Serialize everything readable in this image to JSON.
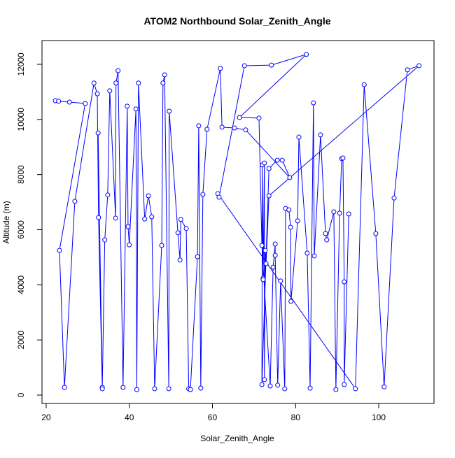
{
  "chart_data": {
    "type": "line",
    "title": "ATOM2 Northbound Solar_Zenith_Angle",
    "x_label": "Solar_Zenith_Angle",
    "y_label": "Altitude (m)",
    "xlim": [
      19,
      113.3
    ],
    "ylim": [
      -304,
      12862
    ],
    "xticks": [
      20,
      40,
      60,
      80,
      100
    ],
    "yticks": [
      0,
      2000,
      4000,
      6000,
      8000,
      10000,
      12000
    ],
    "x": [
      22.2,
      23.0,
      25.6,
      29.4,
      23.2,
      24.4,
      26.9,
      31.5,
      32.3,
      32.6,
      33.5,
      32.5,
      33.5,
      34.1,
      34.8,
      35.3,
      36.7,
      36.8,
      37.3,
      38.5,
      39.5,
      39.7,
      40.0,
      41.6,
      41.8,
      42.2,
      43.7,
      44.6,
      45.4,
      46.1,
      47.8,
      48.1,
      48.5,
      49.5,
      49.6,
      51.7,
      52.2,
      52.4,
      53.7,
      54.3,
      54.7,
      56.4,
      56.7,
      57.2,
      57.7,
      58.7,
      61.9,
      62.3,
      65.3,
      68.0,
      78.6,
      76.8,
      75.6,
      73.6,
      71.9,
      72.0,
      72.2,
      72.2,
      72.5,
      72.5,
      72.7,
      72.9,
      73.6,
      109.7,
      106.9,
      103.7,
      101.3,
      99.3,
      96.5,
      94.4,
      61.3,
      61.6,
      67.7,
      74.2,
      82.6,
      66.5,
      71.2,
      71.9,
      73.9,
      74.6,
      75.1,
      75.1,
      75.7,
      76.4,
      77.4,
      77.6,
      78.4,
      78.8,
      78.9,
      80.5,
      80.8,
      82.8,
      83.5,
      84.3,
      84.5,
      86.0,
      87.2,
      87.5,
      89.2,
      89.7,
      90.6,
      91.1,
      91.4,
      91.7,
      91.7,
      92.8
    ],
    "series": [
      {
        "color": "#0000ff",
        "values": [
          10680,
          10660,
          10630,
          10580,
          5250,
          280,
          7030,
          11320,
          10930,
          6440,
          280,
          9510,
          230,
          5630,
          7260,
          11040,
          6420,
          11320,
          11770,
          280,
          10480,
          6110,
          5450,
          10380,
          200,
          11320,
          6390,
          7230,
          6470,
          230,
          5430,
          11320,
          11620,
          230,
          10300,
          5890,
          4900,
          6370,
          6040,
          230,
          200,
          5020,
          9770,
          250,
          7280,
          9640,
          11850,
          9720,
          9690,
          9620,
          7890,
          8520,
          8520,
          8220,
          380,
          8350,
          4240,
          4190,
          8420,
          560,
          5250,
          4770,
          7230,
          11950,
          11800,
          7150,
          300,
          5860,
          11260,
          230,
          7310,
          7180,
          11950,
          11970,
          12360,
          10070,
          10050,
          5430,
          330,
          4640,
          5480,
          5070,
          360,
          4140,
          230,
          6770,
          6720,
          6090,
          3400,
          6320,
          9360,
          5150,
          250,
          10600,
          5050,
          9440,
          5860,
          5630,
          6650,
          200,
          6600,
          8580,
          8600,
          4110,
          380,
          6570
        ]
      }
    ]
  }
}
